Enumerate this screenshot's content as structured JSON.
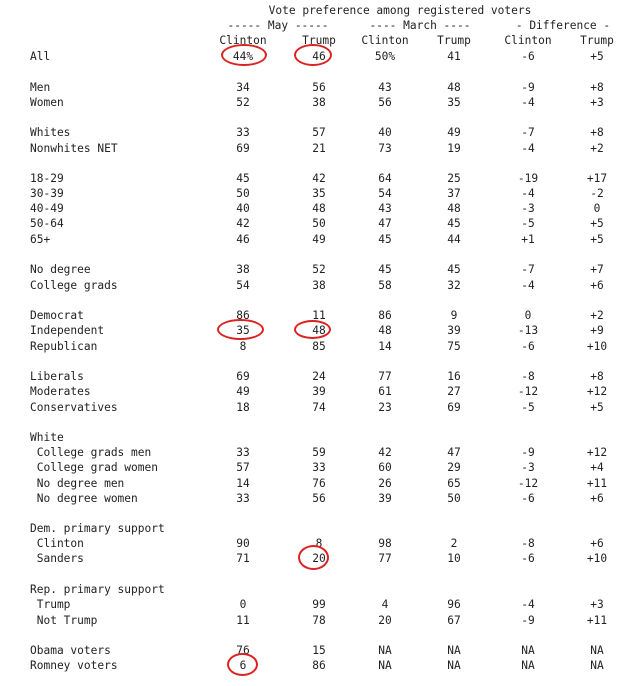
{
  "header": {
    "title": "Vote preference among registered voters",
    "groups": [
      "----- May -----",
      "---- March ----",
      "- Difference -"
    ],
    "columns": [
      "Clinton",
      "Trump",
      "Clinton",
      "Trump",
      "Clinton",
      "Trump"
    ]
  },
  "rows": [
    {
      "label": "All",
      "v": [
        "44%",
        "46",
        "50%",
        "41",
        "-6",
        "+5"
      ]
    },
    {
      "label": "Men",
      "v": [
        "34",
        "56",
        "43",
        "48",
        "-9",
        "+8"
      ]
    },
    {
      "label": "Women",
      "v": [
        "52",
        "38",
        "56",
        "35",
        "-4",
        "+3"
      ]
    },
    {
      "label": "Whites",
      "v": [
        "33",
        "57",
        "40",
        "49",
        "-7",
        "+8"
      ]
    },
    {
      "label": "Nonwhites NET",
      "v": [
        "69",
        "21",
        "73",
        "19",
        "-4",
        "+2"
      ]
    },
    {
      "label": "18-29",
      "v": [
        "45",
        "42",
        "64",
        "25",
        "-19",
        "+17"
      ]
    },
    {
      "label": "30-39",
      "v": [
        "50",
        "35",
        "54",
        "37",
        "-4",
        "-2"
      ]
    },
    {
      "label": "40-49",
      "v": [
        "40",
        "48",
        "43",
        "48",
        "-3",
        "0"
      ]
    },
    {
      "label": "50-64",
      "v": [
        "42",
        "50",
        "47",
        "45",
        "-5",
        "+5"
      ]
    },
    {
      "label": "65+",
      "v": [
        "46",
        "49",
        "45",
        "44",
        "+1",
        "+5"
      ]
    },
    {
      "label": "No degree",
      "v": [
        "38",
        "52",
        "45",
        "45",
        "-7",
        "+7"
      ]
    },
    {
      "label": "College grads",
      "v": [
        "54",
        "38",
        "58",
        "32",
        "-4",
        "+6"
      ]
    },
    {
      "label": "Democrat",
      "v": [
        "86",
        "11",
        "86",
        "9",
        "0",
        "+2"
      ]
    },
    {
      "label": "Independent",
      "v": [
        "35",
        "48",
        "48",
        "39",
        "-13",
        "+9"
      ]
    },
    {
      "label": "Republican",
      "v": [
        "8",
        "85",
        "14",
        "75",
        "-6",
        "+10"
      ]
    },
    {
      "label": "Liberals",
      "v": [
        "69",
        "24",
        "77",
        "16",
        "-8",
        "+8"
      ]
    },
    {
      "label": "Moderates",
      "v": [
        "49",
        "39",
        "61",
        "27",
        "-12",
        "+12"
      ]
    },
    {
      "label": "Conservatives",
      "v": [
        "18",
        "74",
        "23",
        "69",
        "-5",
        "+5"
      ]
    },
    {
      "label": "White",
      "v": [
        "",
        "",
        "",
        "",
        "",
        ""
      ]
    },
    {
      "label": " College grads men",
      "v": [
        "33",
        "59",
        "42",
        "47",
        "-9",
        "+12"
      ]
    },
    {
      "label": " College grad women",
      "v": [
        "57",
        "33",
        "60",
        "29",
        "-3",
        "+4"
      ]
    },
    {
      "label": " No degree men",
      "v": [
        "14",
        "76",
        "26",
        "65",
        "-12",
        "+11"
      ]
    },
    {
      "label": " No degree women",
      "v": [
        "33",
        "56",
        "39",
        "50",
        "-6",
        "+6"
      ]
    },
    {
      "label": "Dem. primary support",
      "v": [
        "",
        "",
        "",
        "",
        "",
        ""
      ]
    },
    {
      "label": " Clinton",
      "v": [
        "90",
        "8",
        "98",
        "2",
        "-8",
        "+6"
      ]
    },
    {
      "label": " Sanders",
      "v": [
        "71",
        "20",
        "77",
        "10",
        "-6",
        "+10"
      ]
    },
    {
      "label": "Rep. primary support",
      "v": [
        "",
        "",
        "",
        "",
        "",
        ""
      ]
    },
    {
      "label": " Trump",
      "v": [
        "0",
        "99",
        "4",
        "96",
        "-4",
        "+3"
      ]
    },
    {
      "label": " Not Trump",
      "v": [
        "11",
        "78",
        "20",
        "67",
        "-9",
        "+11"
      ]
    },
    {
      "label": "Obama voters",
      "v": [
        "76",
        "15",
        "NA",
        "NA",
        "NA",
        "NA"
      ]
    },
    {
      "label": "Romney voters",
      "v": [
        "6",
        "86",
        "NA",
        "NA",
        "NA",
        "NA"
      ]
    }
  ],
  "highlight_color": "#dd2222"
}
